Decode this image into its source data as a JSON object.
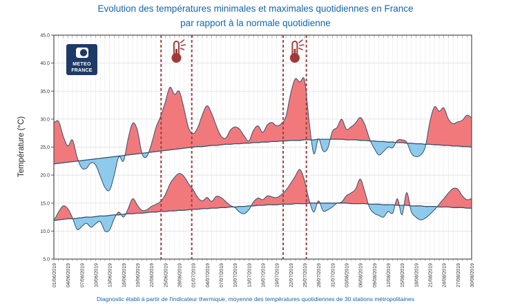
{
  "title": {
    "line1": "Evolution des températures minimales et maximales quotidiennes en France",
    "line2": "par rapport à la normale quotidienne"
  },
  "footer": {
    "caption": "Diagnostic établi à partir de l'indicateur thermique, moyenne des températures quotidiennes de 30 stations métropolitaines"
  },
  "logo": {
    "line1": "METEO",
    "line2": "FRANCE"
  },
  "chart_data": {
    "type": "area",
    "ylabel": "Température (°C)",
    "ylim": [
      5.0,
      45.0
    ],
    "y_ticks": [
      "5.0",
      "10.0",
      "15.0",
      "20.0",
      "25.0",
      "30.0",
      "35.0",
      "40.0",
      "45.0"
    ],
    "days": 91,
    "x_tick_interval_days": 3,
    "x_tick_labels": [
      "01/06/2019",
      "04/06/2019",
      "07/06/2019",
      "10/06/2019",
      "13/06/2019",
      "16/06/2019",
      "19/06/2019",
      "22/06/2019",
      "25/06/2019",
      "28/06/2019",
      "01/07/2019",
      "04/07/2019",
      "07/07/2019",
      "10/07/2019",
      "13/07/2019",
      "16/07/2019",
      "19/07/2019",
      "22/07/2019",
      "25/07/2019",
      "28/07/2019",
      "31/07/2019",
      "03/08/2019",
      "06/08/2019",
      "09/08/2019",
      "12/08/2019",
      "15/08/2019",
      "18/08/2019",
      "21/08/2019",
      "24/08/2019",
      "27/08/2019",
      "30/08/2019"
    ],
    "series": [
      {
        "name": "temperature_maximale",
        "values": [
          29.4,
          29.6,
          27.0,
          25.2,
          26.3,
          23.2,
          21.3,
          21.2,
          22.2,
          21.8,
          19.8,
          17.8,
          17.3,
          20.0,
          23.3,
          22.5,
          26.5,
          29.3,
          28.0,
          23.8,
          23.3,
          25.5,
          28.5,
          30.5,
          33.0,
          35.7,
          34.4,
          35.0,
          32.0,
          28.5,
          27.4,
          28.5,
          30.8,
          32.4,
          31.0,
          28.8,
          27.0,
          26.6,
          28.0,
          28.6,
          28.2,
          27.0,
          26.1,
          28.0,
          28.8,
          27.6,
          29.0,
          29.4,
          28.8,
          29.2,
          30.5,
          34.5,
          37.2,
          36.6,
          37.0,
          29.5,
          23.8,
          26.5,
          24.3,
          24.8,
          27.8,
          28.5,
          30.0,
          28.2,
          28.6,
          29.3,
          30.3,
          29.0,
          26.5,
          24.8,
          23.6,
          24.2,
          25.0,
          24.9,
          26.2,
          26.3,
          25.9,
          23.9,
          23.3,
          23.6,
          25.0,
          29.5,
          32.2,
          31.4,
          32.0,
          30.0,
          29.2,
          29.5,
          29.8,
          30.7,
          30.3
        ]
      },
      {
        "name": "normale_maximale",
        "values": [
          22.0,
          22.1,
          22.2,
          22.3,
          22.4,
          22.5,
          22.6,
          22.7,
          22.8,
          22.9,
          23.0,
          23.1,
          23.2,
          23.3,
          23.4,
          23.5,
          23.6,
          23.7,
          23.8,
          23.9,
          24.0,
          24.1,
          24.2,
          24.3,
          24.4,
          24.5,
          24.6,
          24.7,
          24.8,
          24.9,
          25.0,
          25.1,
          25.1,
          25.2,
          25.3,
          25.3,
          25.4,
          25.5,
          25.5,
          25.6,
          25.6,
          25.7,
          25.7,
          25.8,
          25.8,
          25.9,
          25.9,
          26.0,
          26.0,
          26.1,
          26.1,
          26.2,
          26.2,
          26.2,
          26.3,
          26.3,
          26.3,
          26.4,
          26.4,
          26.4,
          26.4,
          26.4,
          26.4,
          26.3,
          26.3,
          26.3,
          26.2,
          26.2,
          26.1,
          26.1,
          26.0,
          26.0,
          25.9,
          25.9,
          25.8,
          25.8,
          25.7,
          25.7,
          25.6,
          25.6,
          25.5,
          25.5,
          25.4,
          25.4,
          25.3,
          25.3,
          25.2,
          25.2,
          25.1,
          25.1,
          25.0
        ]
      },
      {
        "name": "temperature_minimale",
        "values": [
          12.0,
          13.4,
          14.5,
          14.0,
          12.4,
          10.3,
          10.8,
          11.4,
          10.7,
          11.3,
          11.7,
          10.0,
          10.2,
          12.2,
          13.4,
          12.5,
          14.0,
          15.8,
          14.6,
          13.7,
          13.8,
          14.4,
          14.8,
          15.3,
          16.5,
          18.4,
          19.6,
          20.3,
          19.8,
          18.5,
          17.4,
          16.0,
          15.4,
          16.0,
          15.3,
          16.2,
          16.0,
          15.3,
          14.6,
          14.2,
          13.4,
          13.1,
          13.8,
          15.2,
          15.9,
          15.6,
          16.3,
          16.1,
          16.0,
          16.5,
          17.3,
          18.5,
          19.8,
          21.0,
          19.0,
          15.5,
          13.4,
          15.4,
          13.6,
          13.8,
          14.3,
          15.0,
          15.2,
          16.3,
          16.8,
          17.5,
          19.3,
          17.0,
          14.2,
          13.2,
          12.8,
          12.5,
          13.5,
          13.2,
          15.8,
          12.9,
          16.9,
          13.5,
          12.5,
          12.0,
          12.3,
          13.0,
          13.8,
          14.8,
          15.8,
          16.8,
          17.6,
          17.5,
          16.3,
          15.6,
          15.8
        ]
      },
      {
        "name": "normale_minimale",
        "values": [
          11.9,
          12.0,
          12.1,
          12.2,
          12.2,
          12.3,
          12.4,
          12.5,
          12.5,
          12.6,
          12.7,
          12.7,
          12.8,
          12.9,
          12.9,
          13.0,
          13.1,
          13.1,
          13.2,
          13.2,
          13.3,
          13.4,
          13.4,
          13.5,
          13.5,
          13.6,
          13.6,
          13.7,
          13.7,
          13.8,
          13.9,
          13.9,
          14.0,
          14.0,
          14.1,
          14.1,
          14.2,
          14.2,
          14.3,
          14.3,
          14.4,
          14.4,
          14.5,
          14.5,
          14.6,
          14.6,
          14.7,
          14.7,
          14.7,
          14.8,
          14.8,
          14.8,
          14.9,
          14.9,
          14.9,
          15.0,
          15.0,
          15.0,
          15.0,
          15.0,
          15.0,
          15.0,
          15.0,
          15.0,
          14.9,
          14.9,
          14.9,
          14.9,
          14.8,
          14.8,
          14.8,
          14.7,
          14.7,
          14.7,
          14.6,
          14.6,
          14.6,
          14.5,
          14.5,
          14.5,
          14.4,
          14.4,
          14.4,
          14.3,
          14.3,
          14.3,
          14.2,
          14.2,
          14.2,
          14.1,
          14.1
        ]
      }
    ],
    "heatwave_periods": [
      {
        "start_day": 23.1,
        "end_day": 29.7,
        "icon": "thermometer-icon"
      },
      {
        "start_day": 49.4,
        "end_day": 54.4,
        "icon": "thermometer-icon"
      }
    ],
    "legend_position": "none",
    "grid": true,
    "colors": {
      "above_normal_fill": "#f1797c",
      "below_normal_fill": "#8ecaec",
      "curve_stroke": "#30506e",
      "heatwave_line": "#a04040",
      "thermometer": "#a03a3a",
      "grid_vertical": "#ececec",
      "grid_horizontal": "#dedede",
      "frame": "#4d4d4d",
      "tick_text": "#333333",
      "title_blue": "#1565ab",
      "logo_navy": "#1e3a66"
    }
  }
}
